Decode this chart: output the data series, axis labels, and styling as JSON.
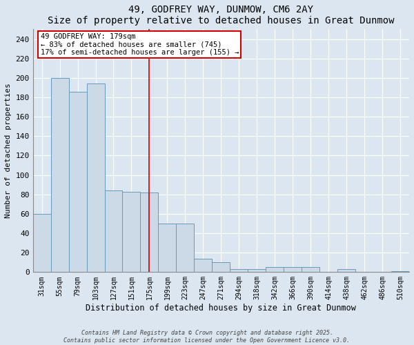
{
  "title_line1": "49, GODFREY WAY, DUNMOW, CM6 2AY",
  "title_line2": "Size of property relative to detached houses in Great Dunmow",
  "xlabel": "Distribution of detached houses by size in Great Dunmow",
  "ylabel": "Number of detached properties",
  "categories": [
    "31sqm",
    "55sqm",
    "79sqm",
    "103sqm",
    "127sqm",
    "151sqm",
    "175sqm",
    "199sqm",
    "223sqm",
    "247sqm",
    "271sqm",
    "294sqm",
    "318sqm",
    "342sqm",
    "366sqm",
    "390sqm",
    "414sqm",
    "438sqm",
    "462sqm",
    "486sqm",
    "510sqm"
  ],
  "values": [
    60,
    200,
    186,
    194,
    84,
    83,
    82,
    50,
    50,
    14,
    10,
    3,
    3,
    5,
    5,
    5,
    0,
    3,
    0,
    0,
    1
  ],
  "bar_color": "#ccdae8",
  "bar_edge_color": "#6699bb",
  "vline_index": 6,
  "annotation_text": "49 GODFREY WAY: 179sqm\n← 83% of detached houses are smaller (745)\n17% of semi-detached houses are larger (155) →",
  "annotation_box_color": "#ffffff",
  "annotation_box_edge": "#cc0000",
  "vline_color": "#cc0000",
  "footnote1": "Contains HM Land Registry data © Crown copyright and database right 2025.",
  "footnote2": "Contains public sector information licensed under the Open Government Licence v3.0.",
  "bg_color": "#dce6f0",
  "plot_bg_color": "#dce6f0",
  "grid_color": "#c0cdd8",
  "ylim": [
    0,
    250
  ],
  "yticks": [
    0,
    20,
    40,
    60,
    80,
    100,
    120,
    140,
    160,
    180,
    200,
    220,
    240
  ]
}
